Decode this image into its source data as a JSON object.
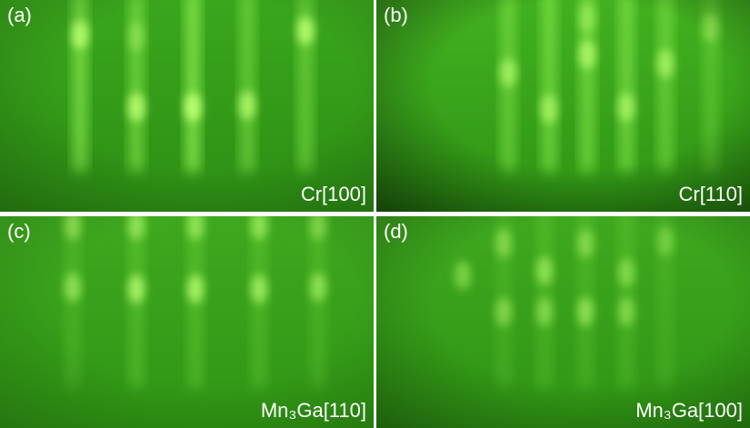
{
  "panels": [
    {
      "label": "(a)",
      "caption": "Cr[100]"
    },
    {
      "label": "(b)",
      "caption": "Cr[110]"
    },
    {
      "label": "(c)",
      "caption": "Mn₃Ga[110]"
    },
    {
      "label": "(d)",
      "caption": "Mn₃Ga[100]"
    }
  ]
}
